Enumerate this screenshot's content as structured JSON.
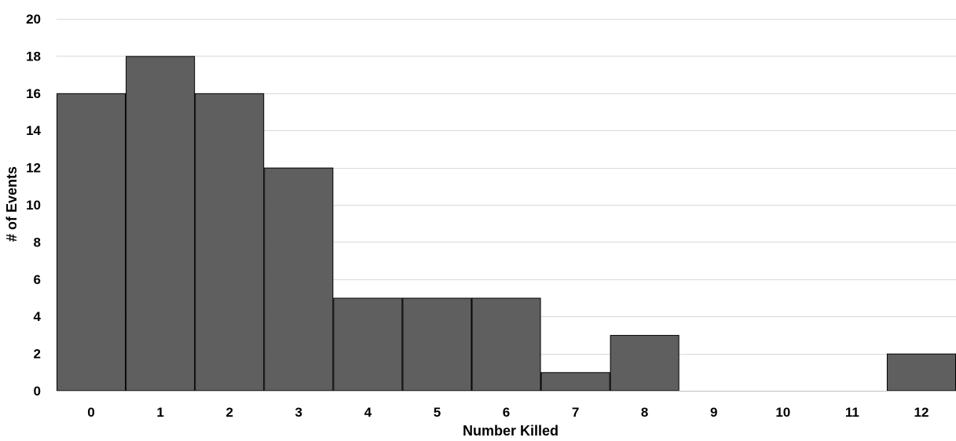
{
  "chart_data": {
    "type": "bar",
    "title": "",
    "xlabel": "Number Killed",
    "ylabel": "# of Events",
    "categories": [
      "0",
      "1",
      "2",
      "3",
      "4",
      "5",
      "6",
      "7",
      "8",
      "9",
      "10",
      "11",
      "12"
    ],
    "values": [
      16,
      18,
      16,
      12,
      5,
      5,
      5,
      1,
      3,
      0,
      0,
      0,
      2
    ],
    "ylim": [
      0,
      20
    ],
    "yticks": [
      "0",
      "2",
      "4",
      "6",
      "8",
      "10",
      "12",
      "14",
      "16",
      "18",
      "20"
    ],
    "grid": true,
    "legend": "none",
    "colors": {
      "bar": "#5f5f5f",
      "bar_edge": "#000000",
      "grid": "#d9d9d9",
      "axis": "#bfbfbf"
    }
  }
}
